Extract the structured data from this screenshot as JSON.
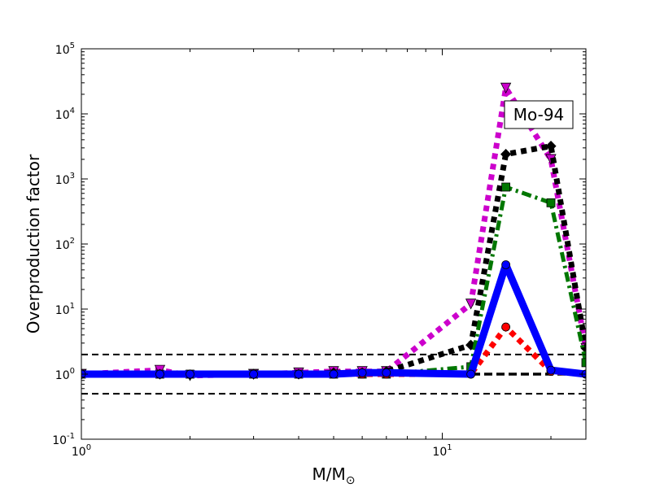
{
  "chart_data": {
    "type": "line",
    "xlabel": "M/M",
    "xlabel_sub": "⊙",
    "ylabel": "Overproduction factor",
    "annotation": "Mo-94",
    "xscale": "log",
    "yscale": "log",
    "xlim": [
      1,
      25
    ],
    "ylim": [
      0.1,
      100000
    ],
    "x_ticks": [
      {
        "value": 1,
        "base": "10",
        "exp": "0"
      },
      {
        "value": 10,
        "base": "10",
        "exp": "1"
      }
    ],
    "y_ticks": [
      {
        "value": 0.1,
        "base": "10",
        "exp": "-1"
      },
      {
        "value": 1,
        "base": "10",
        "exp": "0"
      },
      {
        "value": 10,
        "base": "10",
        "exp": "1"
      },
      {
        "value": 100,
        "base": "10",
        "exp": "2"
      },
      {
        "value": 1000,
        "base": "10",
        "exp": "3"
      },
      {
        "value": 10000,
        "base": "10",
        "exp": "4"
      },
      {
        "value": 100000,
        "base": "10",
        "exp": "5"
      }
    ],
    "reference_lines": [
      0.5,
      1,
      2
    ],
    "grid": false,
    "series": [
      {
        "color": "#cc00cc",
        "style": "dotted",
        "marker": "triangle-down",
        "x": [
          1,
          1.65,
          2,
          3,
          4,
          5,
          6,
          7,
          12,
          15,
          20,
          25
        ],
        "y": [
          1.0,
          1.15,
          0.95,
          1.0,
          1.05,
          1.1,
          1.1,
          1.1,
          12,
          25000,
          2000,
          2.5
        ]
      },
      {
        "color": "#000000",
        "style": "dotted",
        "marker": "diamond",
        "x": [
          1,
          1.65,
          2,
          3,
          4,
          5,
          6,
          7,
          12,
          15,
          20,
          25
        ],
        "y": [
          1.0,
          1.0,
          0.98,
          1.0,
          1.0,
          1.05,
          1.05,
          1.1,
          2.8,
          2400,
          3200,
          2.5
        ]
      },
      {
        "color": "#007700",
        "style": "dashdot",
        "marker": "square",
        "x": [
          1,
          1.65,
          2,
          3,
          4,
          5,
          6,
          7,
          12,
          15,
          20,
          25
        ],
        "y": [
          1.0,
          1.0,
          1.0,
          1.0,
          1.0,
          1.0,
          1.0,
          1.0,
          1.3,
          750,
          430,
          1.5
        ]
      },
      {
        "color": "#ff0000",
        "style": "dotted",
        "marker": "circle",
        "x": [
          1,
          1.65,
          2,
          3,
          4,
          5,
          6,
          7,
          12,
          15,
          20,
          25
        ],
        "y": [
          1.0,
          1.0,
          1.0,
          1.0,
          1.0,
          1.0,
          1.0,
          1.0,
          1.0,
          5.3,
          1.1,
          1.0
        ]
      },
      {
        "color": "#0000ff",
        "style": "solid",
        "marker": "circle",
        "x": [
          1,
          1.65,
          2,
          3,
          4,
          5,
          6,
          7,
          12,
          15,
          20,
          25
        ],
        "y": [
          1.0,
          1.0,
          1.0,
          1.0,
          1.0,
          1.0,
          1.05,
          1.05,
          1.0,
          48,
          1.15,
          1.0
        ]
      }
    ]
  }
}
